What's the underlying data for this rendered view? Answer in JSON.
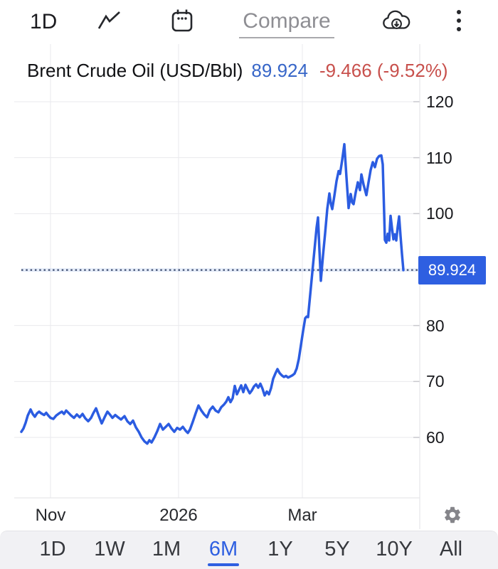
{
  "toolbar": {
    "interval_label": "1D",
    "compare_label": "Compare",
    "icons": [
      "line-chart-type-icon",
      "calendar-icon",
      "cloud-download-icon",
      "more-menu-icon"
    ]
  },
  "header": {
    "instrument": "Brent Crude Oil (USD/Bbl)",
    "last_price": "89.924",
    "change": "-9.466 (-9.52%)"
  },
  "price_badge": {
    "value": "89.924",
    "color": "#2e5fe1"
  },
  "chart_data": {
    "type": "line",
    "title": "Brent Crude Oil (USD/Bbl)",
    "legend": "none",
    "grid": true,
    "current_value": 89.924,
    "y_axis_side": "right",
    "y_ticks": [
      120,
      110,
      100,
      80,
      70,
      60
    ],
    "ylim": [
      54,
      126
    ],
    "x_ticks": [
      {
        "label": "Nov",
        "x": 71
      },
      {
        "label": "2026",
        "x": 251
      },
      {
        "label": "Mar",
        "x": 425
      }
    ],
    "series": [
      {
        "name": "Brent Crude Oil",
        "color": "#2b5ce1",
        "points": [
          [
            30,
            61.0
          ],
          [
            33,
            61.6
          ],
          [
            36,
            62.6
          ],
          [
            39,
            63.9
          ],
          [
            43,
            65.0
          ],
          [
            46,
            64.2
          ],
          [
            49,
            63.7
          ],
          [
            52,
            64.3
          ],
          [
            55,
            64.6
          ],
          [
            58,
            64.3
          ],
          [
            62,
            64.0
          ],
          [
            65,
            64.4
          ],
          [
            68,
            63.9
          ],
          [
            71,
            63.5
          ],
          [
            75,
            63.3
          ],
          [
            79,
            63.9
          ],
          [
            83,
            64.3
          ],
          [
            87,
            64.6
          ],
          [
            90,
            64.2
          ],
          [
            93,
            64.8
          ],
          [
            97,
            64.3
          ],
          [
            100,
            63.9
          ],
          [
            104,
            63.5
          ],
          [
            108,
            64.1
          ],
          [
            112,
            63.6
          ],
          [
            116,
            64.2
          ],
          [
            120,
            63.4
          ],
          [
            124,
            62.9
          ],
          [
            128,
            63.5
          ],
          [
            131,
            64.3
          ],
          [
            135,
            65.2
          ],
          [
            139,
            63.8
          ],
          [
            143,
            62.5
          ],
          [
            147,
            63.6
          ],
          [
            151,
            64.6
          ],
          [
            155,
            64.0
          ],
          [
            158,
            63.5
          ],
          [
            162,
            64.0
          ],
          [
            166,
            63.6
          ],
          [
            170,
            63.2
          ],
          [
            175,
            63.8
          ],
          [
            179,
            62.9
          ],
          [
            183,
            62.4
          ],
          [
            187,
            63.0
          ],
          [
            191,
            61.8
          ],
          [
            195,
            61.0
          ],
          [
            199,
            60.0
          ],
          [
            203,
            59.3
          ],
          [
            207,
            58.9
          ],
          [
            210,
            59.5
          ],
          [
            213,
            59.1
          ],
          [
            217,
            60.0
          ],
          [
            221,
            61.1
          ],
          [
            225,
            62.4
          ],
          [
            229,
            61.4
          ],
          [
            233,
            61.9
          ],
          [
            237,
            62.4
          ],
          [
            241,
            61.6
          ],
          [
            245,
            61.0
          ],
          [
            249,
            61.7
          ],
          [
            253,
            61.4
          ],
          [
            257,
            61.9
          ],
          [
            261,
            61.2
          ],
          [
            264,
            60.8
          ],
          [
            267,
            61.4
          ],
          [
            271,
            62.8
          ],
          [
            275,
            64.3
          ],
          [
            279,
            65.7
          ],
          [
            283,
            64.8
          ],
          [
            287,
            64.1
          ],
          [
            291,
            63.6
          ],
          [
            295,
            64.9
          ],
          [
            299,
            65.5
          ],
          [
            303,
            64.8
          ],
          [
            307,
            64.5
          ],
          [
            311,
            65.4
          ],
          [
            315,
            65.9
          ],
          [
            318,
            66.4
          ],
          [
            321,
            67.2
          ],
          [
            324,
            66.3
          ],
          [
            327,
            67.0
          ],
          [
            330,
            69.2
          ],
          [
            333,
            67.7
          ],
          [
            336,
            68.5
          ],
          [
            339,
            69.3
          ],
          [
            342,
            68.1
          ],
          [
            345,
            69.4
          ],
          [
            348,
            68.6
          ],
          [
            351,
            67.9
          ],
          [
            354,
            68.4
          ],
          [
            357,
            69.1
          ],
          [
            360,
            69.5
          ],
          [
            363,
            68.9
          ],
          [
            366,
            69.6
          ],
          [
            369,
            68.7
          ],
          [
            372,
            67.5
          ],
          [
            375,
            68.2
          ],
          [
            378,
            67.7
          ],
          [
            381,
            68.8
          ],
          [
            384,
            70.5
          ],
          [
            387,
            71.4
          ],
          [
            390,
            72.2
          ],
          [
            393,
            71.5
          ],
          [
            396,
            71.1
          ],
          [
            399,
            70.8
          ],
          [
            402,
            71.0
          ],
          [
            405,
            70.7
          ],
          [
            408,
            70.9
          ],
          [
            411,
            71.1
          ],
          [
            414,
            71.4
          ],
          [
            417,
            72.3
          ],
          [
            420,
            74.0
          ],
          [
            423,
            76.5
          ],
          [
            426,
            79.0
          ],
          [
            429,
            81.3
          ],
          [
            431,
            81.6
          ],
          [
            433,
            81.5
          ],
          [
            436,
            85.5
          ],
          [
            439,
            89.5
          ],
          [
            442,
            93.5
          ],
          [
            445,
            97.5
          ],
          [
            447,
            99.3
          ],
          [
            449,
            93.5
          ],
          [
            451,
            88.0
          ],
          [
            454,
            92.5
          ],
          [
            457,
            96.5
          ],
          [
            460,
            100.8
          ],
          [
            463,
            103.6
          ],
          [
            465,
            101.8
          ],
          [
            467,
            100.8
          ],
          [
            470,
            103.2
          ],
          [
            473,
            105.8
          ],
          [
            476,
            107.6
          ],
          [
            478,
            107.1
          ],
          [
            481,
            109.6
          ],
          [
            484,
            112.4
          ],
          [
            487,
            106.5
          ],
          [
            490,
            101.0
          ],
          [
            493,
            103.5
          ],
          [
            495,
            102.0
          ],
          [
            497,
            101.7
          ],
          [
            500,
            103.8
          ],
          [
            503,
            105.6
          ],
          [
            506,
            104.2
          ],
          [
            508,
            107.0
          ],
          [
            511,
            105.2
          ],
          [
            515,
            103.3
          ],
          [
            518,
            105.6
          ],
          [
            521,
            107.8
          ],
          [
            524,
            109.2
          ],
          [
            527,
            108.3
          ],
          [
            530,
            109.8
          ],
          [
            533,
            110.3
          ],
          [
            536,
            110.4
          ],
          [
            538,
            108.8
          ],
          [
            540,
            100.0
          ],
          [
            541,
            95.3
          ],
          [
            543,
            94.8
          ],
          [
            545,
            96.4
          ],
          [
            547,
            95.2
          ],
          [
            549,
            99.6
          ],
          [
            551,
            97.4
          ],
          [
            553,
            95.4
          ],
          [
            555,
            96.3
          ],
          [
            557,
            95.2
          ],
          [
            559,
            97.6
          ],
          [
            561,
            99.5
          ],
          [
            563,
            96.0
          ],
          [
            565,
            92.8
          ],
          [
            567,
            89.9
          ]
        ]
      }
    ],
    "colors": {
      "line": "#2b5ce1",
      "grid": "#e9e9ed",
      "axis": "#e2e2e6",
      "tick": "#c9c9ce",
      "dotted_price_line": "#3f4e70"
    }
  },
  "x_axis_row": {
    "settings_icon": "gear-icon"
  },
  "footer": {
    "ranges": [
      "1D",
      "1W",
      "1M",
      "6M",
      "1Y",
      "5Y",
      "10Y",
      "All"
    ],
    "active": "6M",
    "active_color": "#2e5fe1"
  }
}
